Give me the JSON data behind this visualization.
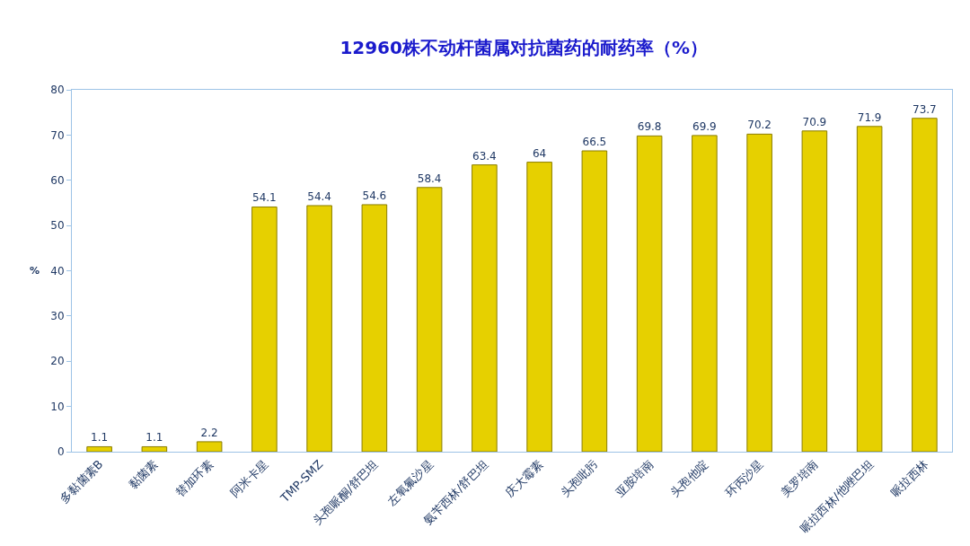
{
  "chart_data": {
    "type": "bar",
    "title": "12960株不动杆菌属对抗菌药的耐药率（%）",
    "ylabel": "%",
    "categories": [
      "多黏菌素B",
      "黏菌素",
      "替加环素",
      "阿米卡星",
      "TMP-SMZ",
      "头孢哌酮/舒巴坦",
      "左氧氟沙星",
      "氨苄西林/舒巴坦",
      "庆大霉素",
      "头孢吡肟",
      "亚胺培南",
      "头孢他啶",
      "环丙沙星",
      "美罗培南",
      "哌拉西林/他唑巴坦",
      "哌拉西林"
    ],
    "values": [
      1.1,
      1.1,
      2.2,
      54.1,
      54.4,
      54.6,
      58.4,
      63.4,
      64,
      66.5,
      69.8,
      69.9,
      70.2,
      70.9,
      71.9,
      73.7
    ],
    "color": "#e6d000",
    "ylim": [
      0,
      80
    ],
    "yticks": [
      0,
      10,
      20,
      30,
      40,
      50,
      60,
      70,
      80
    ],
    "data_labels": true
  }
}
